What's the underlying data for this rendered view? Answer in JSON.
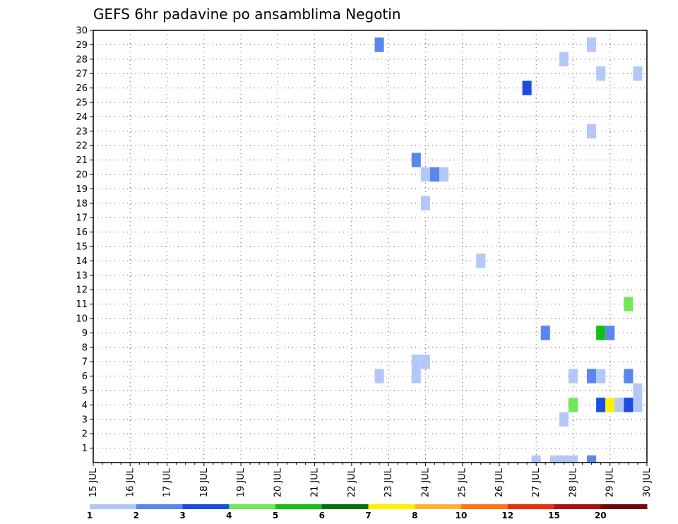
{
  "chart_data": {
    "type": "heatmap",
    "title": "GEFS 6hr padavine po ansamblima Negotin",
    "x_tick_labels": [
      "15 JUL",
      "16 JUL",
      "17 JUL",
      "18 JUL",
      "19 JUL",
      "20 JUL",
      "21 JUL",
      "22 JUL",
      "23 JUL",
      "24 JUL",
      "25 JUL",
      "26 JUL",
      "27 JUL",
      "28 JUL",
      "29 JUL",
      "30 JUL"
    ],
    "y_tick_labels": [
      "1",
      "2",
      "3",
      "4",
      "5",
      "6",
      "7",
      "8",
      "9",
      "10",
      "11",
      "12",
      "13",
      "14",
      "15",
      "16",
      "17",
      "18",
      "19",
      "20",
      "21",
      "22",
      "23",
      "24",
      "25",
      "26",
      "27",
      "28",
      "29",
      "30"
    ],
    "xlim": [
      "15 JUL 00",
      "30 JUL 00"
    ],
    "ylim": [
      0,
      30
    ],
    "grid": true,
    "legend": {
      "placement": "bottom",
      "thresholds": [
        "1",
        "2",
        "3",
        "4",
        "5",
        "6",
        "7",
        "8",
        "10",
        "12",
        "15",
        "20"
      ],
      "colors": [
        "#b4c8f8",
        "#5a87ee",
        "#1c4de2",
        "#6ee85a",
        "#14be14",
        "#0a6e0a",
        "#fff000",
        "#ffb232",
        "#ff7814",
        "#e63214",
        "#aa1414",
        "#6e0a0a"
      ]
    },
    "cells": [
      {
        "time": "22 JUL 18",
        "member": 29,
        "value": 2
      },
      {
        "time": "22 JUL 18",
        "member": 6,
        "value": 1
      },
      {
        "time": "23 JUL 18",
        "member": 21,
        "value": 2
      },
      {
        "time": "23 JUL 18",
        "member": 7,
        "value": 1
      },
      {
        "time": "23 JUL 18",
        "member": 6,
        "value": 1
      },
      {
        "time": "24 JUL 00",
        "member": 20,
        "value": 1
      },
      {
        "time": "24 JUL 00",
        "member": 18,
        "value": 1
      },
      {
        "time": "24 JUL 00",
        "member": 7,
        "value": 1
      },
      {
        "time": "24 JUL 06",
        "member": 20,
        "value": 2
      },
      {
        "time": "24 JUL 12",
        "member": 20,
        "value": 1
      },
      {
        "time": "25 JUL 12",
        "member": 14,
        "value": 1
      },
      {
        "time": "26 JUL 18",
        "member": 26,
        "value": 3
      },
      {
        "time": "27 JUL 00",
        "member": 0,
        "value": 1
      },
      {
        "time": "27 JUL 06",
        "member": 9,
        "value": 2
      },
      {
        "time": "27 JUL 12",
        "member": 0,
        "value": 1
      },
      {
        "time": "27 JUL 18",
        "member": 28,
        "value": 1
      },
      {
        "time": "27 JUL 18",
        "member": 3,
        "value": 1
      },
      {
        "time": "27 JUL 18",
        "member": 0,
        "value": 1
      },
      {
        "time": "28 JUL 00",
        "member": 6,
        "value": 1
      },
      {
        "time": "28 JUL 00",
        "member": 4,
        "value": 4
      },
      {
        "time": "28 JUL 00",
        "member": 0,
        "value": 1
      },
      {
        "time": "28 JUL 12",
        "member": 29,
        "value": 1
      },
      {
        "time": "28 JUL 12",
        "member": 23,
        "value": 1
      },
      {
        "time": "28 JUL 12",
        "member": 6,
        "value": 2
      },
      {
        "time": "28 JUL 12",
        "member": 0,
        "value": 2
      },
      {
        "time": "28 JUL 18",
        "member": 27,
        "value": 1
      },
      {
        "time": "28 JUL 18",
        "member": 9,
        "value": 5
      },
      {
        "time": "28 JUL 18",
        "member": 6,
        "value": 1
      },
      {
        "time": "28 JUL 18",
        "member": 4,
        "value": 3
      },
      {
        "time": "29 JUL 00",
        "member": 9,
        "value": 2
      },
      {
        "time": "29 JUL 00",
        "member": 4,
        "value": 7
      },
      {
        "time": "29 JUL 06",
        "member": 4,
        "value": 1
      },
      {
        "time": "29 JUL 12",
        "member": 11,
        "value": 4
      },
      {
        "time": "29 JUL 12",
        "member": 6,
        "value": 2
      },
      {
        "time": "29 JUL 12",
        "member": 4,
        "value": 3
      },
      {
        "time": "29 JUL 18",
        "member": 27,
        "value": 1
      },
      {
        "time": "29 JUL 18",
        "member": 5,
        "value": 1
      },
      {
        "time": "29 JUL 18",
        "member": 4,
        "value": 1
      }
    ]
  }
}
